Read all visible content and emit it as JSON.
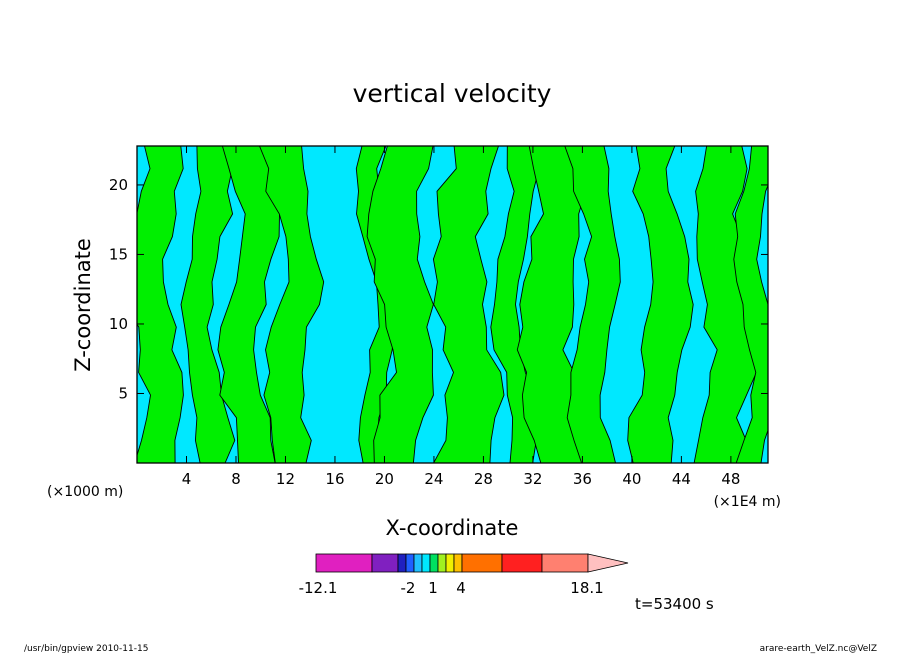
{
  "chart_data": {
    "type": "heatmap",
    "title": "vertical velocity",
    "xlabel": "X-coordinate",
    "ylabel": "Z-coordinate",
    "x_unit_left": "(×1000 m)",
    "x_unit_right": "(×1E4 m)",
    "xlim": [
      0,
      51
    ],
    "ylim": [
      0,
      22.8
    ],
    "x_ticks": [
      "4",
      "8",
      "12",
      "16",
      "20",
      "24",
      "28",
      "32",
      "36",
      "40",
      "44",
      "48"
    ],
    "y_ticks": [
      "5",
      "10",
      "15",
      "20"
    ],
    "time_label": "t=53400 s",
    "colorbar": {
      "labels": [
        "-12.1",
        "-2",
        "1",
        "4",
        "18.1"
      ],
      "colors": [
        "#e020c0",
        "#8020c0",
        "#2020c0",
        "#2060ff",
        "#20c0ff",
        "#00e8ff",
        "#00e060",
        "#a0f020",
        "#f0f000",
        "#ffc000",
        "#ff7000",
        "#ff2020",
        "#ff8070",
        "#ffc0c0"
      ],
      "upward_color": "#00ef00",
      "downward_color": "#00e8ff"
    },
    "regions_note": "",
    "updraft_columns_x": [
      1.5,
      5.5,
      9,
      12.5,
      19.5,
      21.5,
      26.5,
      30.5,
      33.5,
      37,
      42.5,
      47.5,
      50
    ]
  },
  "footer": {
    "program": "/usr/bin/gpview   2010-11-15",
    "source": "arare-earth_VelZ.nc@VelZ"
  }
}
